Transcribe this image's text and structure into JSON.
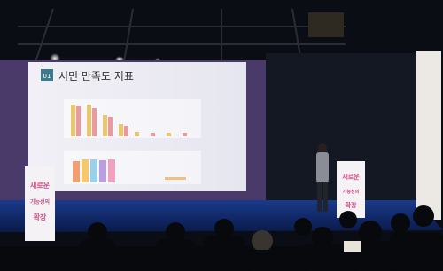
{
  "screen": {
    "number": "01",
    "title": "시민 만족도 지표"
  },
  "banners": {
    "left": [
      "새로운",
      "가능성의",
      "확장"
    ],
    "right": [
      "새로운",
      "가능성의",
      "확장"
    ]
  }
}
